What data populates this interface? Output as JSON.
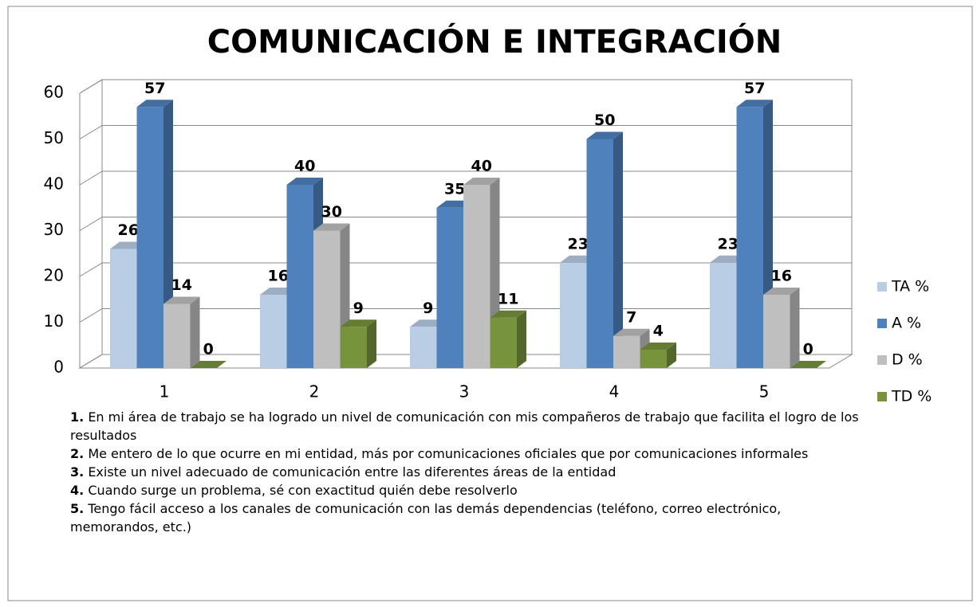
{
  "chart_data": {
    "type": "bar3d",
    "title": "COMUNICACIÓN E INTEGRACIÓN",
    "categories": [
      "1",
      "2",
      "3",
      "4",
      "5"
    ],
    "series": [
      {
        "name": "TA %",
        "color": "#b9cde5",
        "values": [
          26,
          16,
          9,
          23,
          23
        ]
      },
      {
        "name": "A %",
        "color": "#4f81bd",
        "values": [
          57,
          40,
          35,
          50,
          57
        ]
      },
      {
        "name": "D %",
        "color": "#bfbfbf",
        "values": [
          14,
          30,
          40,
          7,
          16
        ]
      },
      {
        "name": "TD %",
        "color": "#77933c",
        "values": [
          0,
          9,
          11,
          4,
          0
        ]
      }
    ],
    "ylim": [
      0,
      60
    ],
    "yticks": [
      0,
      10,
      20,
      30,
      40,
      50,
      60
    ],
    "grid": true,
    "legend": "right",
    "notes": [
      {
        "number": "1.",
        "text": "En mi área de trabajo se ha logrado un nivel de comunicación con mis compañeros de trabajo que facilita el logro de los resultados"
      },
      {
        "number": "2.",
        "text": "Me entero de lo que ocurre en mi entidad, más por comunicaciones oficiales que por comunicaciones informales"
      },
      {
        "number": "3.",
        "text": "Existe un nivel adecuado de comunicación entre las diferentes áreas de la entidad"
      },
      {
        "number": "4.",
        "text": "Cuando surge un problema, sé con exactitud quién debe resolverlo"
      },
      {
        "number": "5.",
        "text": "Tengo fácil acceso a los canales de comunicación con las demás dependencias (teléfono, correo electrónico, memorandos, etc.)"
      }
    ]
  }
}
